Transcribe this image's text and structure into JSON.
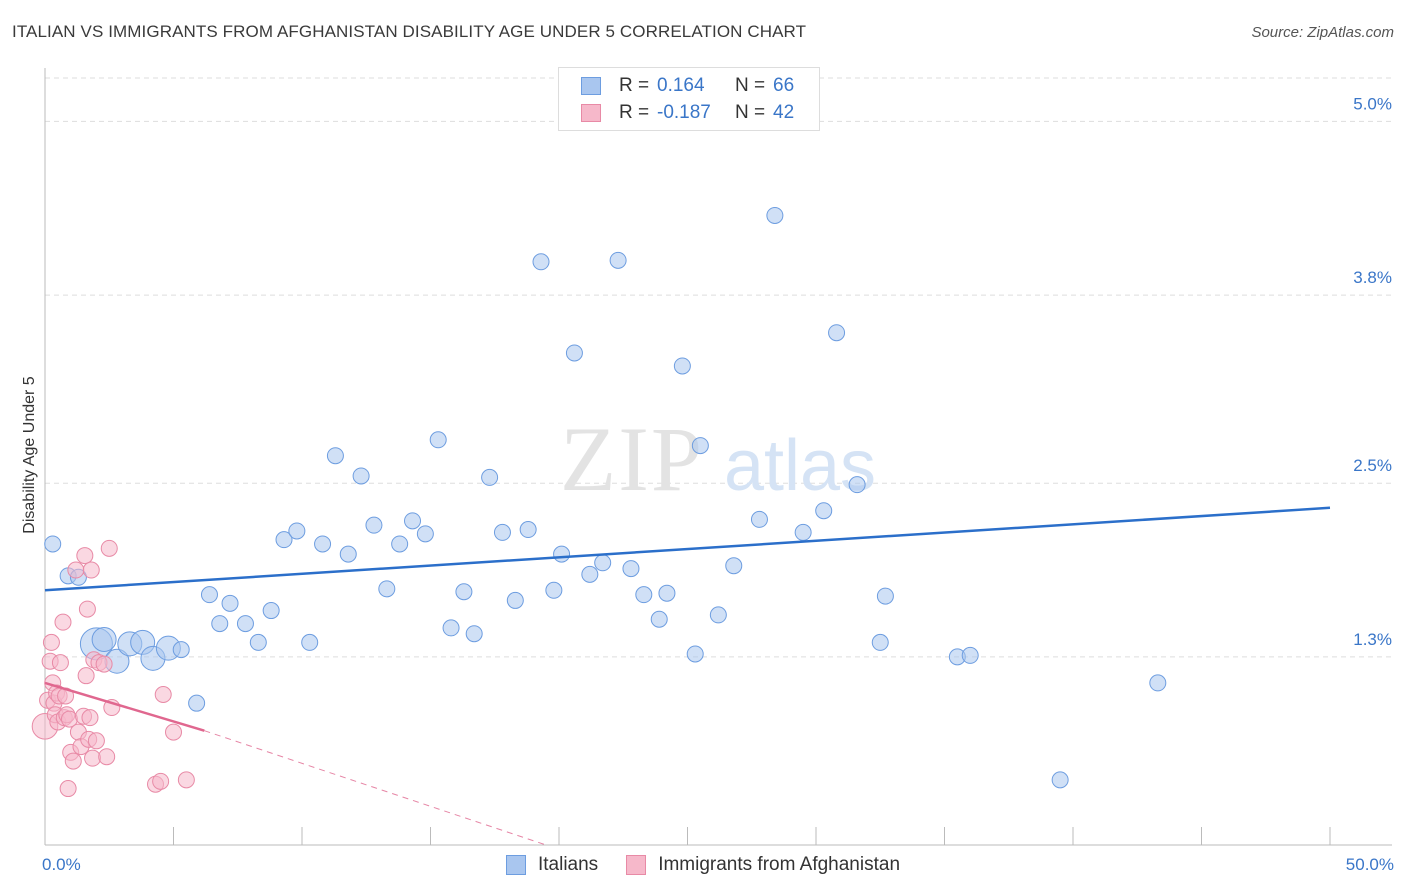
{
  "title": "ITALIAN VS IMMIGRANTS FROM AFGHANISTAN DISABILITY AGE UNDER 5 CORRELATION CHART",
  "source": "Source: ZipAtlas.com",
  "watermark": {
    "zip": "ZIP",
    "atlas": "atlas"
  },
  "stats": [
    {
      "r_label": "R =",
      "r_value": "0.164",
      "n_label": "N =",
      "n_value": "66"
    },
    {
      "r_label": "R =",
      "r_value": "-0.187",
      "n_label": "N =",
      "n_value": "42"
    }
  ],
  "legend": [
    {
      "label": "Italians"
    },
    {
      "label": "Immigrants from Afghanistan"
    }
  ],
  "colors": {
    "italians_fill": "#a9c6ef",
    "italians_stroke": "#6d9de0",
    "italians_line": "#2b6fca",
    "afghan_fill": "#f6b8ca",
    "afghan_stroke": "#e88aa6",
    "afghan_line": "#e0678f",
    "axis_label": "#3a76c8",
    "grid": "#dddddd"
  },
  "chart_data": {
    "type": "scatter",
    "title": "ITALIAN VS IMMIGRANTS FROM AFGHANISTAN DISABILITY AGE UNDER 5 CORRELATION CHART",
    "xlabel": "",
    "ylabel": "Disability Age Under 5",
    "xlim": [
      0,
      50
    ],
    "ylim": [
      0,
      5.3
    ],
    "x_tick_labels": [
      "0.0%",
      "50.0%"
    ],
    "y_ticks": [
      1.3,
      2.5,
      3.8,
      5.0
    ],
    "y_tick_labels": [
      "1.3%",
      "2.5%",
      "3.8%",
      "5.0%"
    ],
    "grid": true,
    "series": [
      {
        "name": "Italians",
        "trend": [
          [
            0,
            1.76
          ],
          [
            50,
            2.33
          ]
        ],
        "points": [
          [
            0.3,
            2.08,
            1
          ],
          [
            0.9,
            1.86,
            1
          ],
          [
            1.3,
            1.85,
            1
          ],
          [
            2.0,
            1.39,
            2
          ],
          [
            2.3,
            1.42,
            1.5
          ],
          [
            2.8,
            1.27,
            1.5
          ],
          [
            3.3,
            1.39,
            1.5
          ],
          [
            3.8,
            1.4,
            1.5
          ],
          [
            4.2,
            1.29,
            1.5
          ],
          [
            4.8,
            1.36,
            1.5
          ],
          [
            5.3,
            1.35,
            1
          ],
          [
            5.9,
            0.98,
            1
          ],
          [
            6.4,
            1.73,
            1
          ],
          [
            6.8,
            1.53,
            1
          ],
          [
            7.2,
            1.67,
            1
          ],
          [
            7.8,
            1.53,
            1
          ],
          [
            8.3,
            1.4,
            1
          ],
          [
            8.8,
            1.62,
            1
          ],
          [
            9.3,
            2.11,
            1
          ],
          [
            9.8,
            2.17,
            1
          ],
          [
            10.3,
            1.4,
            1
          ],
          [
            10.8,
            2.08,
            1
          ],
          [
            11.3,
            2.69,
            1
          ],
          [
            11.8,
            2.01,
            1
          ],
          [
            12.3,
            2.55,
            1
          ],
          [
            12.8,
            2.21,
            1
          ],
          [
            13.3,
            1.77,
            1
          ],
          [
            13.8,
            2.08,
            1
          ],
          [
            14.3,
            2.24,
            1
          ],
          [
            14.8,
            2.15,
            1
          ],
          [
            15.3,
            2.8,
            1
          ],
          [
            15.8,
            1.5,
            1
          ],
          [
            16.3,
            1.75,
            1
          ],
          [
            16.7,
            1.46,
            1
          ],
          [
            17.3,
            2.54,
            1
          ],
          [
            17.8,
            2.16,
            1
          ],
          [
            18.3,
            1.69,
            1
          ],
          [
            18.8,
            2.18,
            1
          ],
          [
            19.3,
            4.03,
            1
          ],
          [
            19.8,
            1.76,
            1
          ],
          [
            20.1,
            2.01,
            1
          ],
          [
            20.6,
            3.4,
            1
          ],
          [
            21.2,
            1.87,
            1
          ],
          [
            21.7,
            1.95,
            1
          ],
          [
            22.3,
            4.04,
            1
          ],
          [
            22.8,
            1.91,
            1
          ],
          [
            23.3,
            1.73,
            1
          ],
          [
            23.9,
            1.56,
            1
          ],
          [
            24.2,
            1.74,
            1
          ],
          [
            24.8,
            3.31,
            1
          ],
          [
            25.3,
            1.32,
            1
          ],
          [
            25.5,
            2.76,
            1
          ],
          [
            26.2,
            1.59,
            1
          ],
          [
            26.8,
            1.93,
            1
          ],
          [
            27.8,
            2.25,
            1
          ],
          [
            28.4,
            4.35,
            1
          ],
          [
            29.5,
            2.16,
            1
          ],
          [
            30.3,
            2.31,
            1
          ],
          [
            30.8,
            3.54,
            1
          ],
          [
            31.6,
            2.49,
            1
          ],
          [
            32.5,
            1.4,
            1
          ],
          [
            32.7,
            1.72,
            1
          ],
          [
            35.5,
            1.3,
            1
          ],
          [
            36.0,
            1.31,
            1
          ],
          [
            43.3,
            1.12,
            1
          ],
          [
            39.5,
            0.45,
            1
          ]
        ]
      },
      {
        "name": "Immigrants from Afghanistan",
        "trend": [
          [
            0,
            1.12
          ],
          [
            6.2,
            0.79
          ]
        ],
        "trend_extension": [
          [
            6.2,
            0.79
          ],
          [
            19.5,
            0.0
          ]
        ],
        "points": [
          [
            0.0,
            0.82,
            1.6
          ],
          [
            0.1,
            1.0,
            1
          ],
          [
            0.2,
            1.27,
            1
          ],
          [
            0.25,
            1.4,
            1
          ],
          [
            0.3,
            1.12,
            1
          ],
          [
            0.35,
            0.98,
            1
          ],
          [
            0.4,
            0.9,
            1
          ],
          [
            0.45,
            1.05,
            1
          ],
          [
            0.5,
            0.85,
            1
          ],
          [
            0.55,
            1.03,
            1
          ],
          [
            0.6,
            1.26,
            1
          ],
          [
            0.7,
            1.54,
            1
          ],
          [
            0.75,
            0.88,
            1
          ],
          [
            0.8,
            1.03,
            1
          ],
          [
            0.85,
            0.9,
            1
          ],
          [
            0.9,
            0.39,
            1
          ],
          [
            0.95,
            0.87,
            1
          ],
          [
            1.0,
            0.64,
            1
          ],
          [
            1.1,
            0.58,
            1
          ],
          [
            1.2,
            1.9,
            1
          ],
          [
            1.3,
            0.78,
            1
          ],
          [
            1.4,
            0.68,
            1
          ],
          [
            1.5,
            0.89,
            1
          ],
          [
            1.55,
            2.0,
            1
          ],
          [
            1.6,
            1.17,
            1
          ],
          [
            1.65,
            1.63,
            1
          ],
          [
            1.7,
            0.73,
            1
          ],
          [
            1.75,
            0.88,
            1
          ],
          [
            1.8,
            1.9,
            1
          ],
          [
            1.85,
            0.6,
            1
          ],
          [
            1.9,
            1.28,
            1
          ],
          [
            2.0,
            0.72,
            1
          ],
          [
            2.1,
            1.26,
            1
          ],
          [
            2.3,
            1.25,
            1
          ],
          [
            2.4,
            0.61,
            1
          ],
          [
            2.5,
            2.05,
            1
          ],
          [
            2.6,
            0.95,
            1
          ],
          [
            4.3,
            0.42,
            1
          ],
          [
            4.5,
            0.44,
            1
          ],
          [
            4.6,
            1.04,
            1
          ],
          [
            5.0,
            0.78,
            1
          ],
          [
            5.5,
            0.45,
            1
          ]
        ]
      }
    ]
  }
}
